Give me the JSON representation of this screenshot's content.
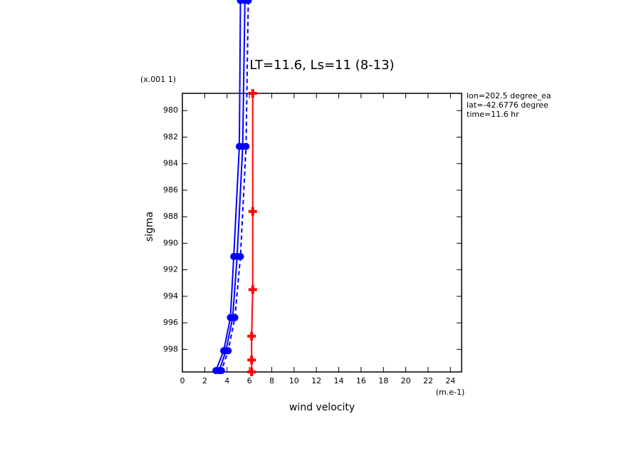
{
  "chart_data": {
    "type": "line",
    "title": "LT=11.6, Ls=11 (8-13)",
    "xlabel": "wind velocity",
    "xunit": "(m.e-1)",
    "ylabel": "sigma",
    "yunit": "(x.001 1)",
    "annotations": [
      "lon=202.5 degree_ea",
      "lat=-42.6776 degree",
      "time=11.6 hr"
    ],
    "xlim": [
      0,
      25
    ],
    "xticks": [
      0,
      2,
      4,
      6,
      8,
      10,
      12,
      14,
      16,
      18,
      20,
      22,
      24
    ],
    "ylim": [
      999.7,
      978.7
    ],
    "yticks": [
      980,
      982,
      984,
      986,
      988,
      990,
      992,
      994,
      996,
      998
    ],
    "series": [
      {
        "color": "#0000ff",
        "dash": false,
        "marker": "circle",
        "x": [
          5.2,
          5.1,
          4.6,
          4.3,
          3.7,
          3.0
        ],
        "y": [
          971.7,
          982.7,
          991.0,
          995.6,
          998.1,
          999.6
        ]
      },
      {
        "color": "#0000ff",
        "dash": false,
        "marker": "circle",
        "x": [
          5.6,
          5.4,
          4.9,
          4.5,
          3.9,
          3.3
        ],
        "y": [
          971.7,
          982.7,
          991.0,
          995.6,
          998.1,
          999.6
        ]
      },
      {
        "color": "#0000ff",
        "dash": true,
        "marker": "circle",
        "x": [
          5.9,
          5.7,
          5.2,
          4.7,
          4.1,
          3.5
        ],
        "y": [
          971.7,
          982.7,
          991.0,
          995.6,
          998.1,
          999.6
        ]
      },
      {
        "color": "#ff0000",
        "dash": false,
        "marker": "plus",
        "x": [
          6.3,
          6.3,
          6.3,
          6.2,
          6.2,
          6.2
        ],
        "y": [
          978.7,
          987.6,
          993.5,
          997.0,
          998.8,
          999.7
        ]
      }
    ]
  }
}
